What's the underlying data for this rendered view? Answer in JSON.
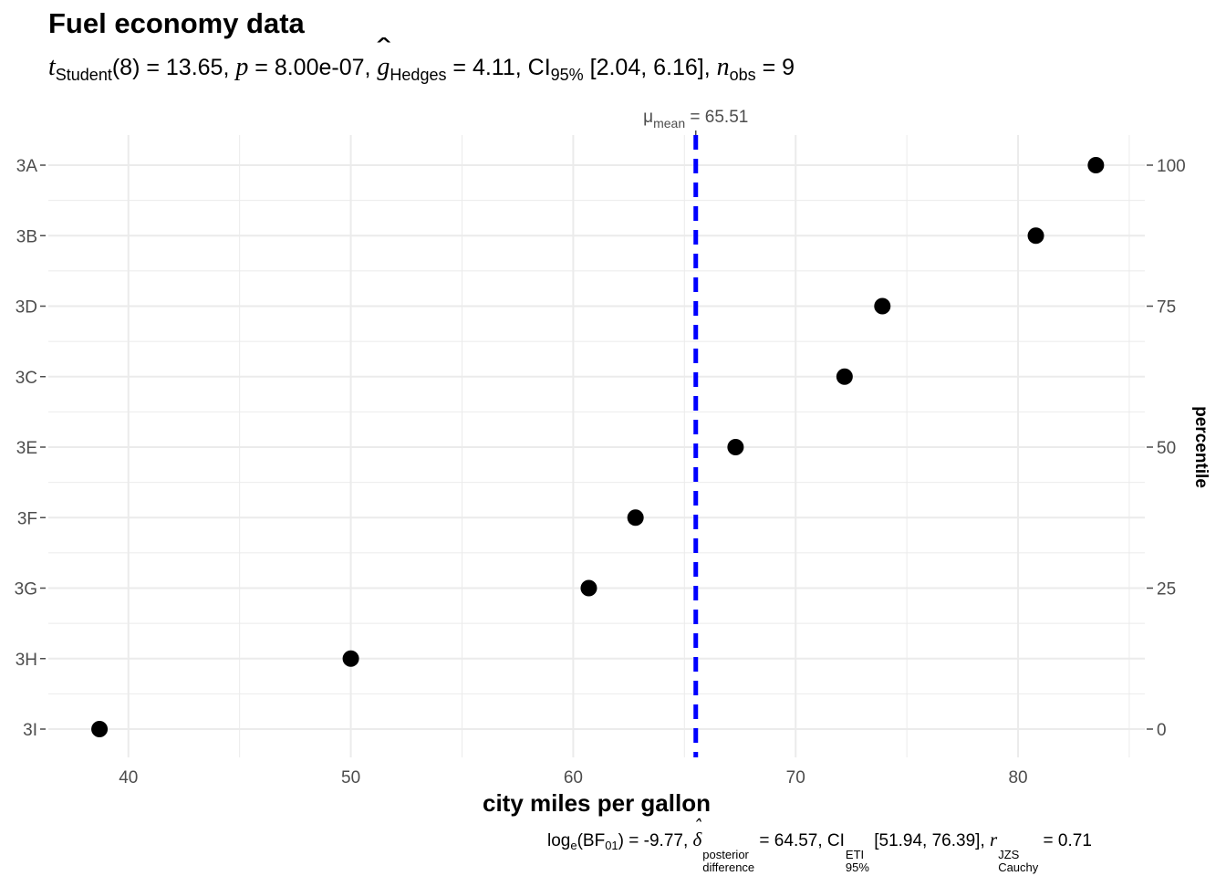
{
  "chart_data": {
    "type": "scatter",
    "title": "Fuel economy data",
    "subtitle": {
      "t_label": "t",
      "t_sub": "Student",
      "t_rest": "(8) = 13.65, ",
      "p_label": "p",
      "p_rest": " = 8.00e-07, ",
      "g_label": "g",
      "g_sub": "Hedges",
      "g_rest": " = 4.11, CI",
      "ci_sub": "95%",
      "ci_rest": " [2.04, 6.16], ",
      "n_label": "n",
      "n_sub": "obs",
      "n_rest": " = 9"
    },
    "caption": {
      "log_label": "log",
      "log_sub": "e",
      "bf_open": "(BF",
      "bf_sub": "01",
      "bf_rest": ") = -9.77, ",
      "delta_label": "δ",
      "delta_sup": "posterior",
      "delta_sub": "difference",
      "delta_rest": " = 64.57, CI",
      "ci_sup": "ETI",
      "ci_sub": "95%",
      "ci_rest": " [51.94, 76.39], ",
      "r_label": "r",
      "r_sup": "JZS",
      "r_sub": "Cauchy",
      "r_rest": " = 0.71"
    },
    "mean_label": {
      "mu": "μ",
      "sub": "mean",
      "value": " = 65.51"
    },
    "mean_value": 65.51,
    "mean_line_color": "#0000FF",
    "point_color": "#000000",
    "xlabel": "city miles per gallon",
    "y2label": "percentile",
    "xlim": [
      36.4,
      85.7
    ],
    "xticks": [
      40,
      50,
      60,
      70,
      80
    ],
    "y2ticks": [
      0,
      25,
      50,
      75,
      100
    ],
    "categories": [
      "3A",
      "3B",
      "3D",
      "3C",
      "3E",
      "3F",
      "3G",
      "3H",
      "3I"
    ],
    "x": [
      83.5,
      80.8,
      73.9,
      72.2,
      67.3,
      62.8,
      60.7,
      50.0,
      38.7
    ],
    "grid": true
  }
}
